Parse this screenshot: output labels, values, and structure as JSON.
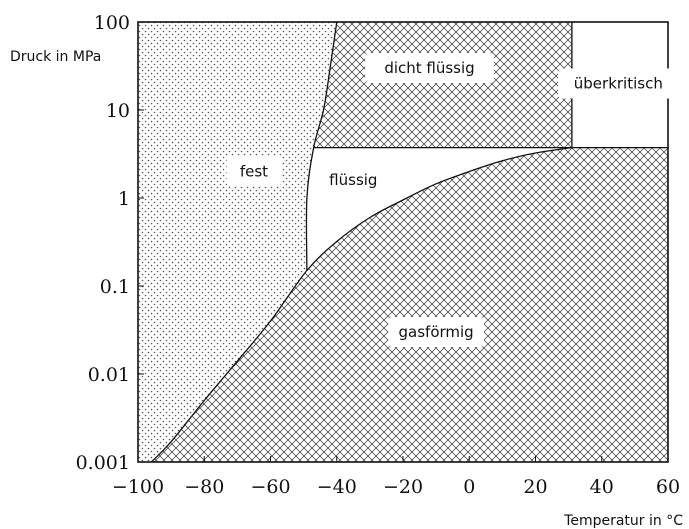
{
  "chart_data": {
    "type": "area",
    "xlabel": "Temperatur in °C",
    "ylabel": "Druck in MPa",
    "xlim": [
      -100,
      60
    ],
    "ylim": [
      0.001,
      100
    ],
    "y_scale": "log",
    "x_ticks": [
      -100,
      -80,
      -60,
      -40,
      -20,
      0,
      20,
      40,
      60
    ],
    "x_tick_labels": [
      "−100",
      "−80",
      "−60",
      "−40",
      "−20",
      "0",
      "20",
      "40",
      "60"
    ],
    "y_ticks": [
      0.001,
      0.01,
      0.1,
      1,
      10,
      100
    ],
    "y_tick_labels": [
      "0.001",
      "0.01",
      "0.1",
      "1",
      "10",
      "100"
    ],
    "grid": false,
    "regions": [
      {
        "name": "fest",
        "label": "fest",
        "pattern": "dots",
        "label_at": {
          "x": -65,
          "y": 2
        }
      },
      {
        "name": "flüssig",
        "label": "flüssig",
        "pattern": "none",
        "label_at": {
          "x": -35,
          "y": 1.6
        }
      },
      {
        "name": "dicht flüssig",
        "label": "dicht flüssig",
        "pattern": "crosshatch",
        "label_at": {
          "x": -12,
          "y": 30
        }
      },
      {
        "name": "überkritisch",
        "label": "überkritisch",
        "pattern": "none",
        "label_at": {
          "x": 45,
          "y": 20
        }
      },
      {
        "name": "gasförmig",
        "label": "gasförmig",
        "pattern": "crosshatch",
        "label_at": {
          "x": -10,
          "y": 0.03
        }
      }
    ],
    "curves": {
      "vapor_pressure": {
        "x": [
          -96,
          -90,
          -80,
          -70,
          -60,
          -49,
          -40,
          -30,
          -20,
          -10,
          0,
          10,
          20,
          31
        ],
        "y": [
          0.001,
          0.0017,
          0.005,
          0.014,
          0.04,
          0.15,
          0.32,
          0.6,
          0.95,
          1.45,
          2.0,
          2.65,
          3.25,
          3.74
        ]
      },
      "melting_line": {
        "x": [
          -49,
          -49,
          -47,
          -44,
          -42,
          -40
        ],
        "y": [
          0.15,
          1.0,
          3.7,
          10,
          30,
          100
        ]
      },
      "critical_pressure": 3.74,
      "critical_temperature": 31
    }
  }
}
